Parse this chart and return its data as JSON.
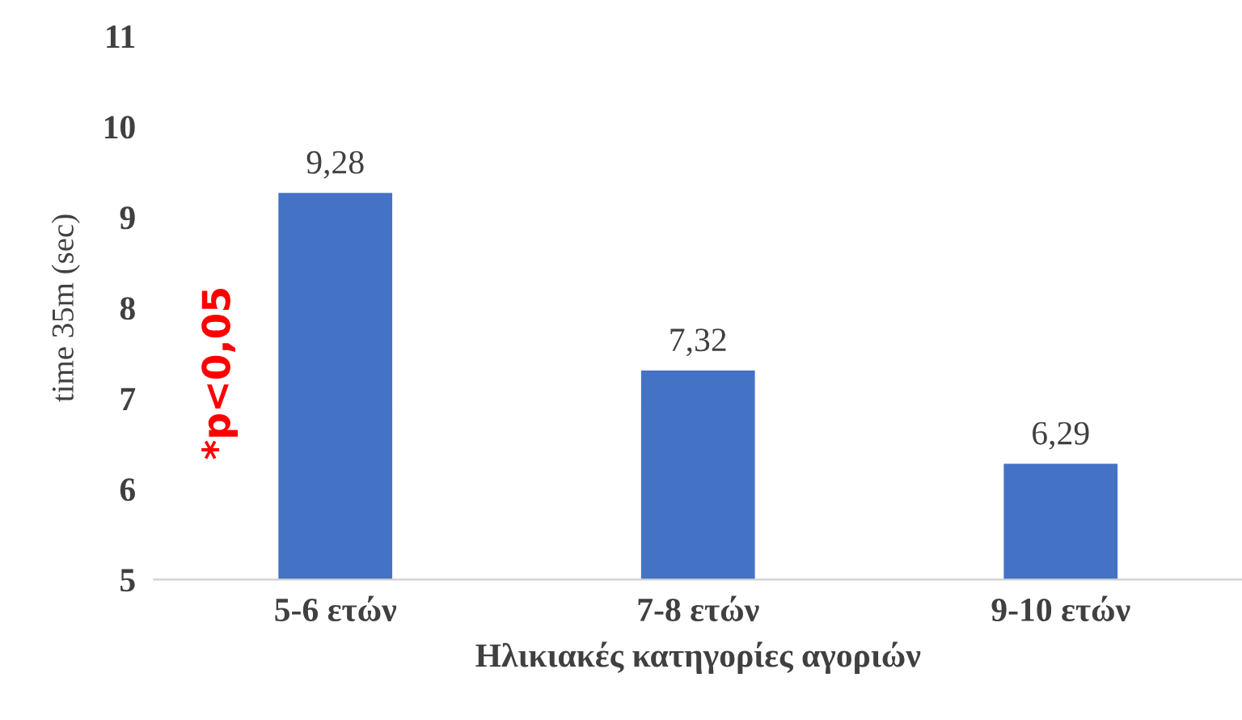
{
  "chart_data": {
    "type": "bar",
    "xlabel": "Ηλικιακές κατηγορίες αγοριών",
    "ylabel": "time 35m (sec)",
    "categories": [
      "5-6 ετών",
      "7-8 ετών",
      "9-10 ετών"
    ],
    "values": [
      9.28,
      7.32,
      6.29
    ],
    "value_labels": [
      "9,28",
      "7,32",
      "6,29"
    ],
    "color": "#4472c4",
    "ylim": [
      5,
      11
    ],
    "yticks": [
      5,
      6,
      7,
      8,
      9,
      10,
      11
    ],
    "grid": false,
    "legend": false,
    "annotations": [
      "*p<0,05"
    ]
  }
}
